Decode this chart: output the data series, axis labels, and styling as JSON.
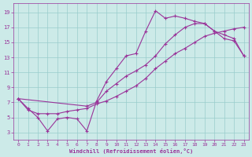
{
  "xlabel": "Windchill (Refroidissement éolien,°C)",
  "bg_color": "#cceae8",
  "line_color": "#993399",
  "grid_color": "#99cccc",
  "line1_x": [
    0,
    1,
    2,
    3,
    4,
    5,
    6,
    7,
    8,
    9,
    10,
    11,
    12,
    13,
    14,
    15,
    16,
    17,
    18,
    19,
    20,
    21,
    22,
    23
  ],
  "line1_y": [
    7.5,
    6.2,
    5.0,
    3.2,
    4.8,
    5.0,
    4.8,
    3.2,
    7.2,
    9.8,
    11.5,
    13.2,
    13.5,
    16.5,
    19.2,
    18.2,
    18.5,
    18.2,
    17.8,
    17.5,
    16.5,
    15.5,
    15.2,
    13.2
  ],
  "line2_x": [
    0,
    1,
    2,
    3,
    4,
    5,
    6,
    7,
    8,
    9,
    10,
    11,
    12,
    13,
    14,
    15,
    16,
    17,
    18,
    19,
    20,
    21,
    22,
    23
  ],
  "line2_y": [
    7.5,
    6.0,
    5.5,
    5.5,
    5.5,
    5.8,
    6.0,
    6.2,
    6.8,
    7.2,
    7.8,
    8.5,
    9.2,
    10.2,
    11.5,
    12.5,
    13.5,
    14.2,
    15.0,
    15.8,
    16.2,
    16.5,
    16.8,
    17.0
  ],
  "line3_x": [
    0,
    7,
    8,
    9,
    10,
    11,
    12,
    13,
    14,
    15,
    16,
    17,
    18,
    19,
    20,
    21,
    22,
    23
  ],
  "line3_y": [
    7.5,
    6.5,
    7.0,
    8.5,
    9.5,
    10.5,
    11.2,
    12.0,
    13.2,
    14.8,
    16.0,
    17.0,
    17.5,
    17.5,
    16.5,
    16.0,
    15.5,
    13.2
  ],
  "xlim": [
    -0.5,
    23.5
  ],
  "ylim": [
    2.0,
    20.2
  ],
  "xticks": [
    0,
    1,
    2,
    3,
    4,
    5,
    6,
    7,
    8,
    9,
    10,
    11,
    12,
    13,
    14,
    15,
    16,
    17,
    18,
    19,
    20,
    21,
    22,
    23
  ],
  "yticks": [
    3,
    5,
    7,
    9,
    11,
    13,
    15,
    17,
    19
  ]
}
